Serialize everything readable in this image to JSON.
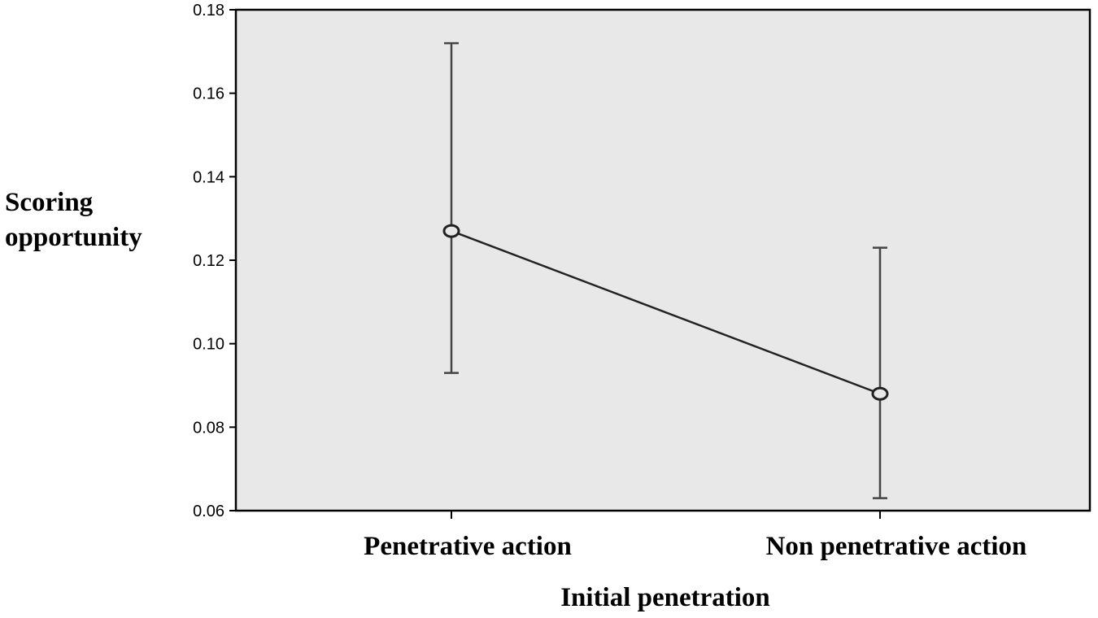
{
  "chart_data": {
    "type": "line",
    "categories": [
      "Penetrative action",
      "Non penetrative action"
    ],
    "series": [
      {
        "values": [
          0.127,
          0.088
        ],
        "error_low": [
          0.093,
          0.063
        ],
        "error_high": [
          0.172,
          0.123
        ]
      }
    ],
    "xlabel": "Initial penetration",
    "ylabel_lines": [
      "Scoring",
      "opportunity"
    ],
    "ylim": [
      0.06,
      0.18
    ],
    "yticks": [
      0.06,
      0.08,
      0.1,
      0.12,
      0.14,
      0.16,
      0.18
    ],
    "ytick_labels": [
      "0.06",
      "0.08",
      "0.10",
      "0.12",
      "0.14",
      "0.16",
      "0.18"
    ],
    "grid": false,
    "legend": "none",
    "colors": {
      "plot_background": "#e8e8e8",
      "line": "#222222",
      "error_bar": "#444444",
      "frame": "#000000"
    }
  }
}
